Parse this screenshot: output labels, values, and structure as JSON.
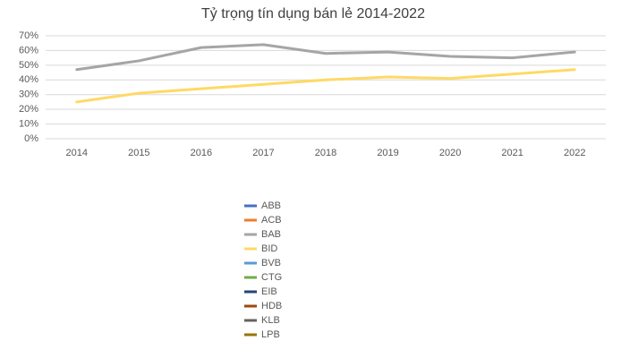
{
  "chart_data": {
    "type": "line",
    "title": "Tỷ trọng tín dụng bán lẻ 2014-2022",
    "categories": [
      "2014",
      "2015",
      "2016",
      "2017",
      "2018",
      "2019",
      "2020",
      "2021",
      "2022"
    ],
    "series": [
      {
        "name": "ABB",
        "color": "#4472c4",
        "values": [
          null,
          null,
          null,
          null,
          null,
          null,
          null,
          null,
          null
        ]
      },
      {
        "name": "ACB",
        "color": "#ed7d31",
        "values": [
          null,
          null,
          null,
          null,
          null,
          null,
          null,
          null,
          null
        ]
      },
      {
        "name": "BAB",
        "color": "#a5a5a5",
        "values": [
          47,
          53,
          62,
          64,
          58,
          59,
          56,
          55,
          59
        ]
      },
      {
        "name": "BID",
        "color": "#ffd965",
        "values": [
          25,
          31,
          34,
          37,
          40,
          42,
          41,
          44,
          47
        ]
      },
      {
        "name": "BVB",
        "color": "#5b9bd5",
        "values": [
          null,
          null,
          null,
          null,
          null,
          null,
          null,
          null,
          null
        ]
      },
      {
        "name": "CTG",
        "color": "#70ad47",
        "values": [
          null,
          null,
          null,
          null,
          null,
          null,
          null,
          null,
          null
        ]
      },
      {
        "name": "EIB",
        "color": "#264478",
        "values": [
          null,
          null,
          null,
          null,
          null,
          null,
          null,
          null,
          null
        ]
      },
      {
        "name": "HDB",
        "color": "#9e480e",
        "values": [
          null,
          null,
          null,
          null,
          null,
          null,
          null,
          null,
          null
        ]
      },
      {
        "name": "KLB",
        "color": "#636363",
        "values": [
          null,
          null,
          null,
          null,
          null,
          null,
          null,
          null,
          null
        ]
      },
      {
        "name": "LPB",
        "color": "#997300",
        "values": [
          null,
          null,
          null,
          null,
          null,
          null,
          null,
          null,
          null
        ]
      }
    ],
    "ylim": [
      0,
      70
    ],
    "yticks": [
      {
        "value": 0,
        "label": "0%"
      },
      {
        "value": 10,
        "label": "10%"
      },
      {
        "value": 20,
        "label": "20%"
      },
      {
        "value": 30,
        "label": "30%"
      },
      {
        "value": 40,
        "label": "40%"
      },
      {
        "value": 50,
        "label": "50%"
      },
      {
        "value": 60,
        "label": "60%"
      },
      {
        "value": 70,
        "label": "70%"
      }
    ],
    "grid": true
  }
}
